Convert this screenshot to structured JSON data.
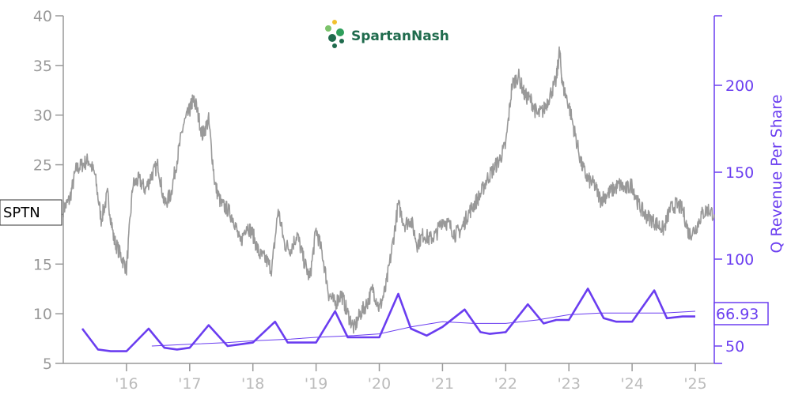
{
  "logo": {
    "text": "SpartanNash"
  },
  "chart_data": {
    "type": "line",
    "ylabel_right": "Q Revenue Per Share",
    "x_ticks": [
      {
        "label": "'16",
        "year": 2016.0
      },
      {
        "label": "'17",
        "year": 2017.0
      },
      {
        "label": "'18",
        "year": 2018.0
      },
      {
        "label": "'19",
        "year": 2019.0
      },
      {
        "label": "'20",
        "year": 2020.0
      },
      {
        "label": "'21",
        "year": 2021.0
      },
      {
        "label": "'22",
        "year": 2022.0
      },
      {
        "label": "'23",
        "year": 2023.0
      },
      {
        "label": "'24",
        "year": 2024.0
      },
      {
        "label": "'25",
        "year": 2025.0
      }
    ],
    "xlim": [
      2015.0,
      2025.3
    ],
    "y_left": {
      "ylim": [
        5,
        40
      ],
      "ticks": [
        "5",
        "10",
        "15",
        "20",
        "25",
        "30",
        "35",
        "40"
      ]
    },
    "y_right": {
      "ylim": [
        40,
        240
      ],
      "ticks": [
        "50",
        "100",
        "150",
        "200"
      ]
    },
    "price_series": {
      "name": "SPTN",
      "color": "#999999",
      "x": [
        2015.0,
        2015.1,
        2015.2,
        2015.3,
        2015.4,
        2015.5,
        2015.6,
        2015.7,
        2015.8,
        2015.9,
        2016.0,
        2016.1,
        2016.2,
        2016.3,
        2016.4,
        2016.5,
        2016.6,
        2016.7,
        2016.8,
        2016.9,
        2017.0,
        2017.05,
        2017.1,
        2017.2,
        2017.3,
        2017.4,
        2017.5,
        2017.6,
        2017.7,
        2017.8,
        2017.9,
        2018.0,
        2018.1,
        2018.2,
        2018.3,
        2018.4,
        2018.5,
        2018.6,
        2018.7,
        2018.8,
        2018.9,
        2019.0,
        2019.1,
        2019.2,
        2019.3,
        2019.4,
        2019.5,
        2019.6,
        2019.7,
        2019.8,
        2019.9,
        2020.0,
        2020.1,
        2020.2,
        2020.3,
        2020.4,
        2020.5,
        2020.6,
        2020.7,
        2020.8,
        2020.9,
        2021.0,
        2021.1,
        2021.2,
        2021.3,
        2021.4,
        2021.5,
        2021.6,
        2021.7,
        2021.8,
        2021.9,
        2022.0,
        2022.1,
        2022.2,
        2022.3,
        2022.4,
        2022.5,
        2022.6,
        2022.7,
        2022.8,
        2022.85,
        2022.9,
        2023.0,
        2023.1,
        2023.2,
        2023.3,
        2023.4,
        2023.5,
        2023.6,
        2023.7,
        2023.8,
        2023.9,
        2024.0,
        2024.1,
        2024.2,
        2024.3,
        2024.4,
        2024.5,
        2024.6,
        2024.7,
        2024.8,
        2024.9,
        2025.0,
        2025.1,
        2025.2,
        2025.3
      ],
      "y": [
        20.5,
        21.5,
        24.5,
        25.0,
        25.5,
        24.0,
        19.5,
        22.0,
        17.5,
        16.0,
        14.5,
        23.0,
        23.5,
        22.5,
        24.0,
        25.0,
        21.0,
        22.0,
        25.5,
        29.0,
        30.5,
        31.5,
        31.0,
        28.0,
        29.5,
        23.0,
        21.0,
        20.5,
        19.5,
        17.0,
        19.0,
        18.0,
        16.0,
        15.5,
        14.5,
        20.5,
        17.0,
        16.5,
        18.0,
        15.5,
        13.5,
        18.5,
        16.0,
        12.0,
        11.0,
        12.0,
        10.0,
        8.5,
        10.0,
        11.0,
        12.5,
        10.5,
        12.5,
        16.5,
        21.0,
        19.0,
        19.5,
        17.0,
        18.0,
        17.5,
        18.0,
        19.5,
        19.0,
        18.0,
        18.5,
        20.0,
        21.0,
        22.0,
        23.5,
        24.5,
        25.5,
        27.0,
        33.0,
        34.0,
        32.0,
        31.5,
        30.0,
        30.5,
        32.0,
        33.5,
        36.5,
        33.0,
        31.0,
        28.0,
        25.0,
        23.5,
        23.0,
        21.5,
        22.0,
        22.5,
        23.0,
        22.5,
        23.0,
        21.0,
        20.0,
        19.5,
        19.0,
        18.5,
        20.5,
        21.0,
        20.5,
        18.0,
        18.5,
        20.0,
        20.5,
        20.0
      ]
    },
    "revenue_series": {
      "name": "Q Revenue Per Share",
      "color": "#6a3df0",
      "x": [
        2015.3,
        2015.55,
        2015.75,
        2016.0,
        2016.35,
        2016.6,
        2016.8,
        2017.0,
        2017.3,
        2017.6,
        2017.8,
        2018.0,
        2018.35,
        2018.55,
        2018.8,
        2019.0,
        2019.3,
        2019.5,
        2019.75,
        2020.0,
        2020.3,
        2020.5,
        2020.75,
        2021.0,
        2021.35,
        2021.6,
        2021.75,
        2022.0,
        2022.35,
        2022.6,
        2022.8,
        2023.0,
        2023.3,
        2023.55,
        2023.75,
        2024.0,
        2024.35,
        2024.55,
        2024.8,
        2025.0
      ],
      "y": [
        60,
        48,
        47,
        47,
        60,
        49,
        48,
        49,
        62,
        50,
        51,
        52,
        64,
        52,
        52,
        52,
        70,
        55,
        55,
        55,
        80,
        60,
        56,
        61,
        71,
        58,
        57,
        58,
        74,
        63,
        65,
        65,
        83,
        66,
        64,
        64,
        82,
        66,
        67,
        67
      ]
    },
    "revenue_trend": {
      "color": "#6a3df0",
      "x": [
        2016.4,
        2017.0,
        2017.6,
        2018.0,
        2018.6,
        2019.0,
        2019.6,
        2020.0,
        2020.5,
        2021.0,
        2021.5,
        2022.0,
        2022.5,
        2023.0,
        2023.5,
        2024.0,
        2024.5,
        2025.0
      ],
      "y": [
        50,
        51,
        52,
        53,
        54,
        55,
        56,
        57,
        61,
        64,
        63,
        63,
        65,
        68,
        69,
        69,
        69,
        70
      ]
    },
    "ticker_label": "SPTN",
    "last_value_label": "66.93"
  }
}
